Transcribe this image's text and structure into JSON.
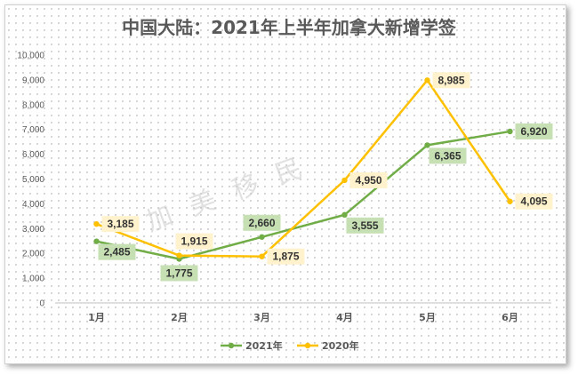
{
  "chart_data": {
    "type": "line",
    "title": "中国大陆：2021年上半年加拿大新增学签",
    "categories": [
      "1月",
      "2月",
      "3月",
      "4月",
      "5月",
      "6月"
    ],
    "series": [
      {
        "name": "2021年",
        "values": [
          2485,
          1775,
          2660,
          3555,
          6365,
          6920
        ],
        "color": "#70AD47",
        "label_bg": "#C6E0B4"
      },
      {
        "name": "2020年",
        "values": [
          3185,
          1915,
          1875,
          4950,
          8985,
          4095
        ],
        "color": "#FFC000",
        "label_bg": "#FFF2CC"
      }
    ],
    "yticks": [
      "0",
      "1,000",
      "2,000",
      "3,000",
      "4,000",
      "5,000",
      "6,000",
      "7,000",
      "8,000",
      "9,000",
      "10,000"
    ],
    "ylim": [
      0,
      10000
    ],
    "grid": false,
    "legend_position": "bottom"
  },
  "watermark": "加 美 移 民"
}
